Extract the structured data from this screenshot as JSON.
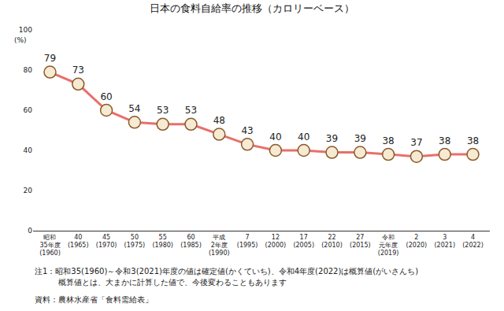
{
  "chart_data": {
    "type": "line",
    "title": "日本の食料自給率の推移（カロリーベース）",
    "ylabel": "(%)",
    "categories": [
      "昭和\n35年度\n(1960)",
      "40\n(1965)",
      "45\n(1970)",
      "50\n(1975)",
      "55\n(1980)",
      "60\n(1985)",
      "平成\n2年度\n(1990)",
      "7\n(1995)",
      "12\n(2000)",
      "17\n(2005)",
      "22\n(2010)",
      "27\n(2015)",
      "令和\n元年度\n(2019)",
      "2\n(2020)",
      "3\n(2021)",
      "4\n(2022)"
    ],
    "values": [
      79,
      73,
      60,
      54,
      53,
      53,
      48,
      43,
      40,
      40,
      39,
      39,
      38,
      37,
      38,
      38
    ],
    "color": "#e8706a",
    "marker": "circle",
    "ylim": [
      0,
      100
    ],
    "yticks": [
      0,
      20,
      40,
      60,
      80,
      100
    ],
    "grid": false,
    "data_labels": true,
    "notes": [
      "注1：昭和35(1960)～令和3(2021)年度の値は確定値(かくていち)、令和4年度(2022)は概算値(がいさんち)",
      "概算値とは、大まかに計算した値で、今後変わることもあります"
    ],
    "source": "資料：農林水産省「食料需給表」"
  }
}
